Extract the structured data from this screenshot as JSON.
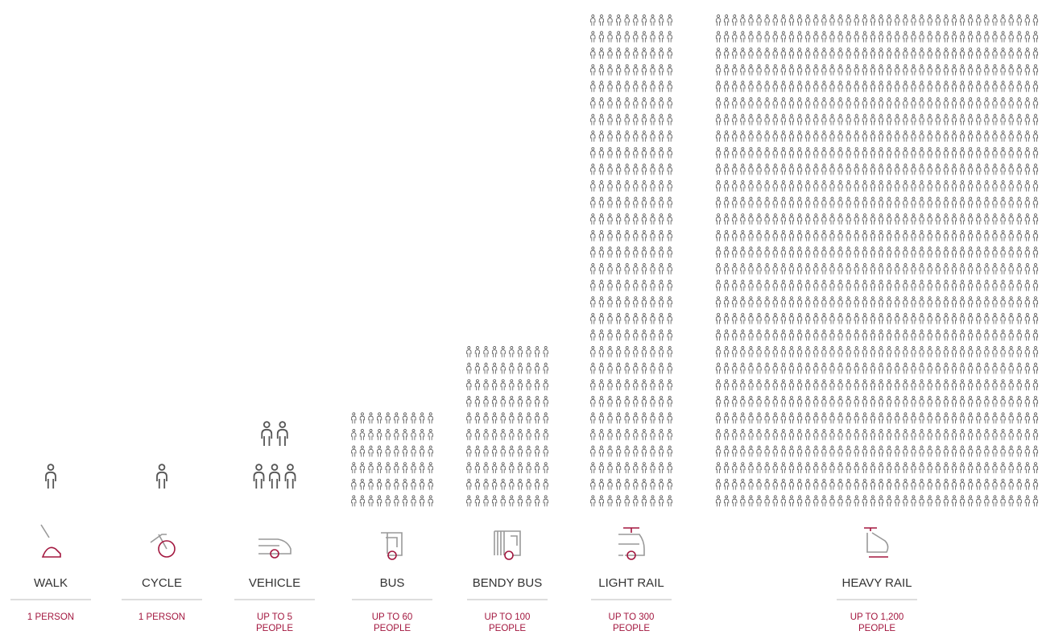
{
  "chart_data": {
    "type": "pictogram",
    "categories": [
      "WALK",
      "CYCLE",
      "VEHICLE",
      "BUS",
      "BENDY BUS",
      "LIGHT RAIL",
      "HEAVY RAIL"
    ],
    "values": [
      1,
      1,
      5,
      60,
      100,
      300,
      1200
    ],
    "value_labels": [
      "1 PERSON",
      "1 PERSON",
      "UP TO 5 PEOPLE",
      "UP TO 60 PEOPLE",
      "UP TO 100 PEOPLE",
      "UP TO 300 PEOPLE",
      "UP TO 1,200 PEOPLE"
    ],
    "color": "#555555",
    "label_color": "#a3173f"
  }
}
